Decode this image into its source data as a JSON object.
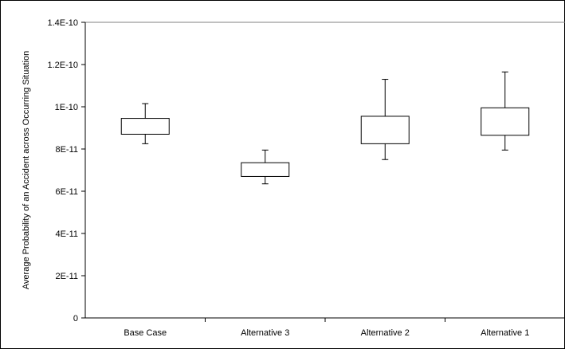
{
  "chart_data": {
    "type": "box",
    "title": "",
    "xlabel": "",
    "ylabel": "Average Probability of an Accident across Occurring Situation",
    "ylim": [
      0,
      1.4e-10
    ],
    "yticks": [
      0,
      2e-11,
      4e-11,
      6e-11,
      8e-11,
      1e-10,
      1.2e-10,
      1.4e-10
    ],
    "ytick_labels": [
      "0",
      "2E-11",
      "4E-11",
      "6E-11",
      "8E-11",
      "1E-10",
      "1.2E-10",
      "1.4E-10"
    ],
    "grid": false,
    "categories": [
      "Base Case",
      "Alternative 3",
      "Alternative 2",
      "Alternative 1"
    ],
    "boxes": [
      {
        "category": "Base Case",
        "whisker_low": 8.25e-11,
        "q1": 8.7e-11,
        "q3": 9.45e-11,
        "whisker_high": 1.015e-10
      },
      {
        "category": "Alternative 3",
        "whisker_low": 6.35e-11,
        "q1": 6.7e-11,
        "q3": 7.35e-11,
        "whisker_high": 7.95e-11
      },
      {
        "category": "Alternative 2",
        "whisker_low": 7.5e-11,
        "q1": 8.25e-11,
        "q3": 9.55e-11,
        "whisker_high": 1.13e-10
      },
      {
        "category": "Alternative 1",
        "whisker_low": 7.95e-11,
        "q1": 8.65e-11,
        "q3": 9.95e-11,
        "whisker_high": 1.165e-10
      }
    ]
  }
}
